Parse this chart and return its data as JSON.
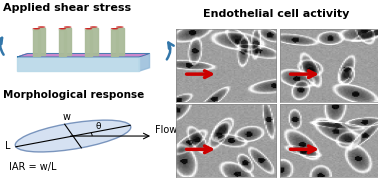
{
  "title_left_top": "Applied shear stress",
  "title_left_bottom": "Morphological response",
  "title_right": "Endothelial cell activity",
  "iar_label": "IAR = w/L",
  "flow_label": "Flow",
  "L_label": "L",
  "w_label": "w",
  "theta_label": "θ",
  "bg_color": "#ffffff",
  "title_color": "#000000",
  "title_fontsize": 8,
  "subtitle_fontsize": 7.5,
  "chip_blue_light": "#b8d8e8",
  "chip_blue_mid": "#90b8d8",
  "chip_blue_dark": "#3377aa",
  "chip_purple": "#cc88cc",
  "chip_purple_dark": "#aa66aa",
  "chip_pillar": "#aabb99",
  "chip_pillar_dark": "#889977",
  "chip_red": "#cc2222",
  "ellipse_fill": "#c8d8ee",
  "ellipse_edge": "#5577aa",
  "arrow_color": "#cc0000",
  "skew": 0.6
}
